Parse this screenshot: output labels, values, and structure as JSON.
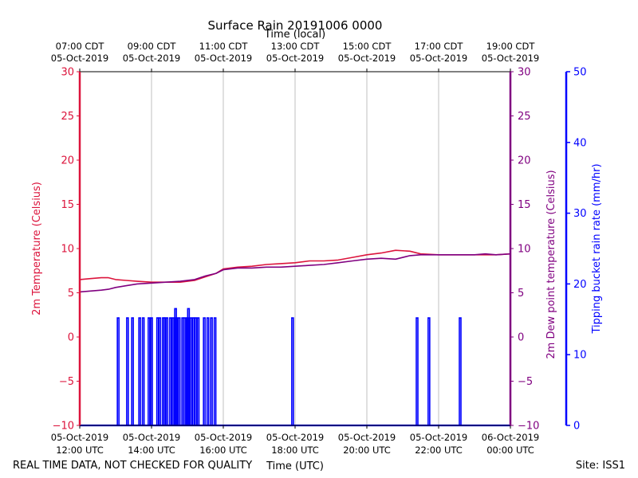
{
  "chart_data": {
    "type": "line",
    "title": "Surface Rain 20191006 0000",
    "top_axis_label": "Time (local)",
    "bottom_axis_label": "Time (UTC)",
    "x_range_utc_hours": [
      12,
      24
    ],
    "grid": true,
    "bottom_ticks": [
      {
        "x": 12,
        "line1": "05-Oct-2019",
        "line2": "12:00 UTC"
      },
      {
        "x": 14,
        "line1": "05-Oct-2019",
        "line2": "14:00 UTC"
      },
      {
        "x": 16,
        "line1": "05-Oct-2019",
        "line2": "16:00 UTC"
      },
      {
        "x": 18,
        "line1": "05-Oct-2019",
        "line2": "18:00 UTC"
      },
      {
        "x": 20,
        "line1": "05-Oct-2019",
        "line2": "20:00 UTC"
      },
      {
        "x": 22,
        "line1": "05-Oct-2019",
        "line2": "22:00 UTC"
      },
      {
        "x": 24,
        "line1": "06-Oct-2019",
        "line2": "00:00 UTC"
      }
    ],
    "top_ticks": [
      {
        "x": 12,
        "line1": "07:00 CDT",
        "line2": "05-Oct-2019"
      },
      {
        "x": 14,
        "line1": "09:00 CDT",
        "line2": "05-Oct-2019"
      },
      {
        "x": 16,
        "line1": "11:00 CDT",
        "line2": "05-Oct-2019"
      },
      {
        "x": 18,
        "line1": "13:00 CDT",
        "line2": "05-Oct-2019"
      },
      {
        "x": 20,
        "line1": "15:00 CDT",
        "line2": "05-Oct-2019"
      },
      {
        "x": 22,
        "line1": "17:00 CDT",
        "line2": "05-Oct-2019"
      },
      {
        "x": 24,
        "line1": "19:00 CDT",
        "line2": "05-Oct-2019"
      }
    ],
    "left_axis": {
      "label": "2m Temperature (Celsius)",
      "ylim": [
        -10,
        30
      ],
      "ticks": [
        -10,
        -5,
        0,
        5,
        10,
        15,
        20,
        25,
        30
      ],
      "color": "#dc143c"
    },
    "right_axis": {
      "label": "2m Dew point temperature (Celsius)",
      "ylim": [
        -10,
        30
      ],
      "ticks": [
        -10,
        -5,
        0,
        5,
        10,
        15,
        20,
        25,
        30
      ],
      "color": "#800080"
    },
    "rain_axis": {
      "label": "Tipping bucket rain rate (mm/hr)",
      "ylim": [
        0,
        50
      ],
      "ticks": [
        0,
        10,
        20,
        30,
        40,
        50
      ],
      "color": "#0000ff"
    },
    "series": [
      {
        "axis": "left",
        "color": "#dc143c",
        "x": [
          12.0,
          12.3,
          12.6,
          12.8,
          13.0,
          13.3,
          13.6,
          14.0,
          14.4,
          14.8,
          15.2,
          15.5,
          15.8,
          16.0,
          16.4,
          16.8,
          17.2,
          17.6,
          18.0,
          18.4,
          18.8,
          19.2,
          19.6,
          20.0,
          20.4,
          20.8,
          21.2,
          21.5,
          22.0,
          22.5,
          23.0,
          23.3,
          23.6,
          24.0
        ],
        "y": [
          6.5,
          6.6,
          6.7,
          6.7,
          6.5,
          6.4,
          6.3,
          6.2,
          6.2,
          6.2,
          6.4,
          6.8,
          7.2,
          7.7,
          7.9,
          8.0,
          8.2,
          8.3,
          8.4,
          8.6,
          8.6,
          8.7,
          9.0,
          9.3,
          9.5,
          9.8,
          9.7,
          9.4,
          9.3,
          9.3,
          9.3,
          9.3,
          9.3,
          9.4
        ]
      },
      {
        "axis": "right",
        "color": "#800080",
        "x": [
          12.0,
          12.3,
          12.6,
          12.8,
          13.0,
          13.3,
          13.6,
          14.0,
          14.4,
          14.8,
          15.2,
          15.5,
          15.8,
          16.0,
          16.4,
          16.8,
          17.2,
          17.6,
          18.0,
          18.4,
          18.8,
          19.2,
          19.6,
          20.0,
          20.4,
          20.8,
          21.2,
          21.5,
          22.0,
          22.5,
          23.0,
          23.3,
          23.6,
          24.0
        ],
        "y": [
          5.1,
          5.2,
          5.3,
          5.4,
          5.6,
          5.8,
          6.0,
          6.1,
          6.2,
          6.3,
          6.5,
          6.9,
          7.2,
          7.6,
          7.8,
          7.8,
          7.9,
          7.9,
          8.0,
          8.1,
          8.2,
          8.4,
          8.6,
          8.8,
          8.9,
          8.8,
          9.2,
          9.3,
          9.3,
          9.3,
          9.3,
          9.4,
          9.3,
          9.4
        ]
      }
    ],
    "rain_rate": {
      "axis": "rain",
      "color": "#0000ff",
      "x": [
        13.07,
        13.33,
        13.47,
        13.67,
        13.77,
        13.93,
        14.0,
        14.17,
        14.23,
        14.33,
        14.37,
        14.43,
        14.53,
        14.6,
        14.67,
        14.7,
        14.77,
        14.87,
        14.93,
        15.0,
        15.03,
        15.1,
        15.17,
        15.23,
        15.3,
        15.47,
        15.57,
        15.67,
        15.77,
        17.93,
        21.4,
        21.73,
        22.6
      ],
      "y": [
        15.2,
        15.2,
        15.2,
        15.2,
        15.2,
        15.2,
        15.2,
        15.2,
        15.2,
        15.2,
        15.2,
        15.2,
        15.2,
        15.2,
        16.5,
        15.2,
        15.2,
        15.2,
        15.2,
        15.2,
        16.5,
        15.2,
        15.2,
        15.2,
        15.2,
        15.2,
        15.2,
        15.2,
        15.2,
        15.2,
        15.2,
        15.2,
        15.2
      ]
    }
  },
  "footer": {
    "left_note": "REAL TIME DATA, NOT CHECKED FOR QUALITY",
    "site": "Site: ISS1"
  }
}
